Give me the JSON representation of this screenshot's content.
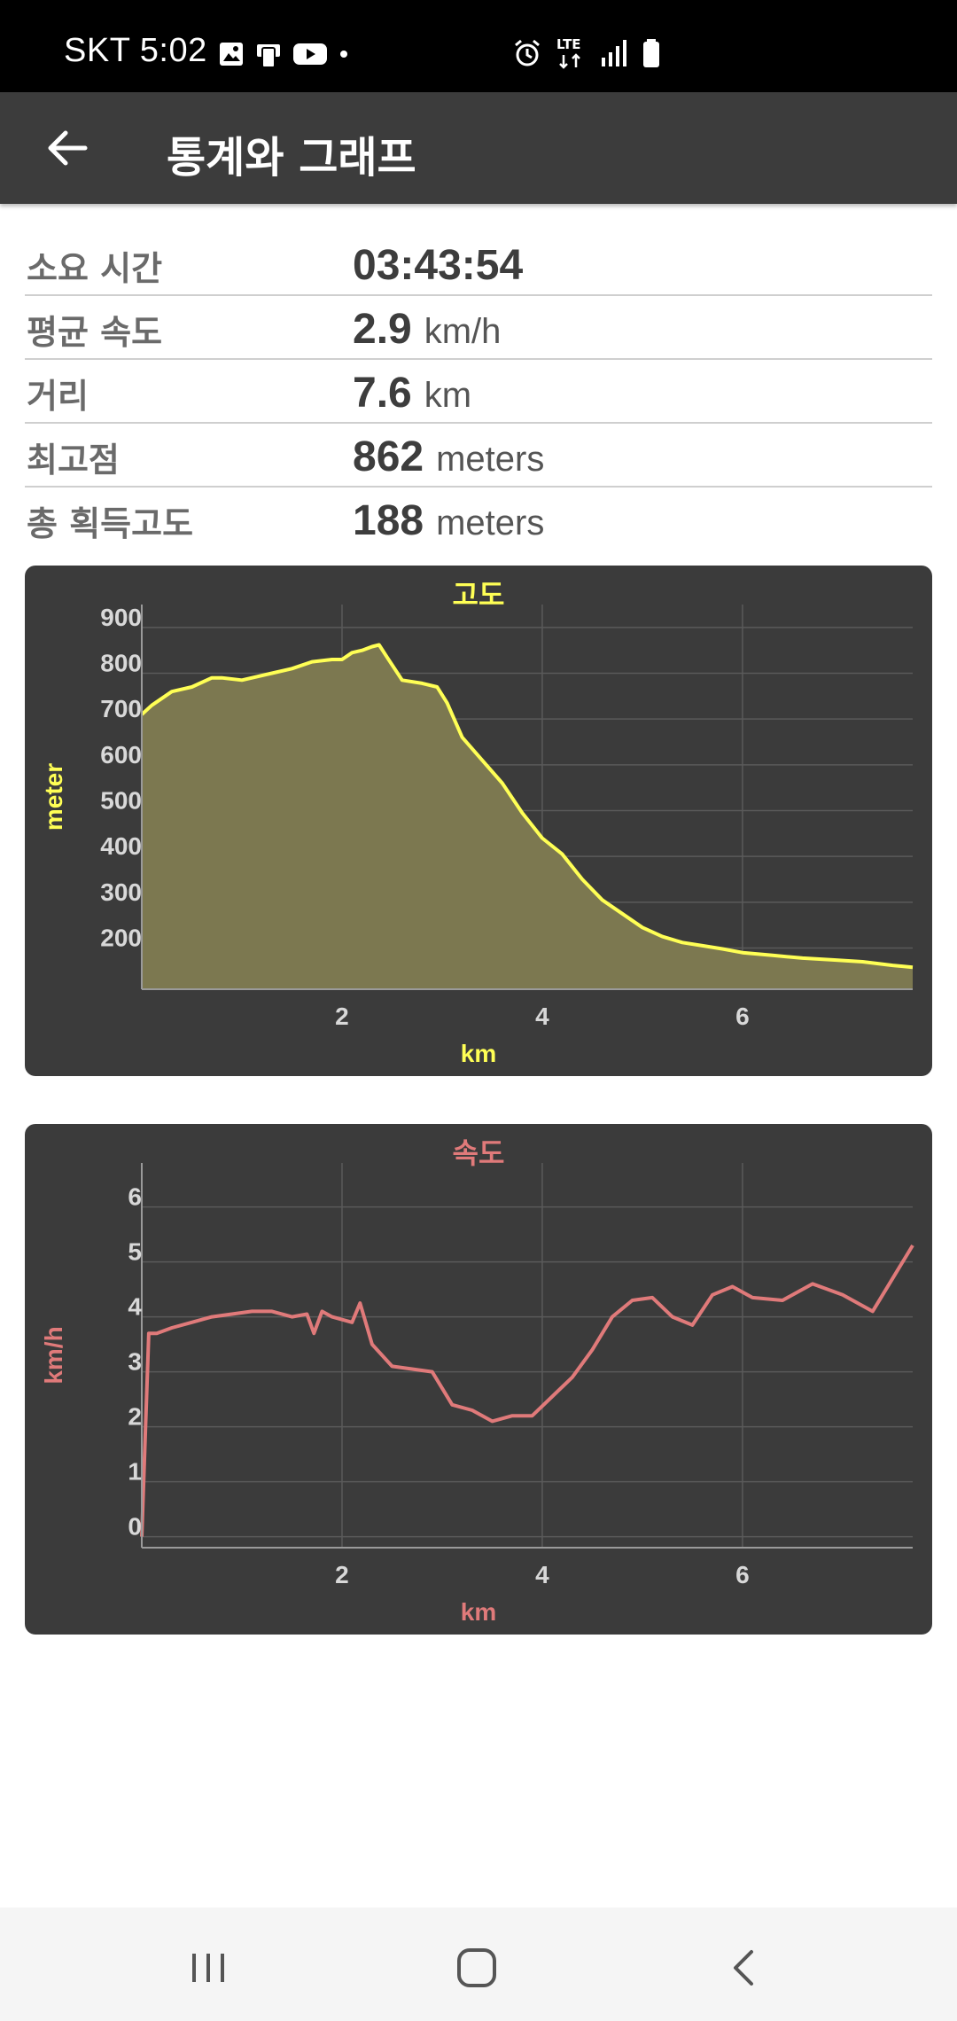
{
  "status_bar": {
    "carrier_time": "SKT 5:02",
    "network": "LTE",
    "icons_left": [
      "gallery-icon",
      "phone-status-icon",
      "youtube-icon",
      "dot-icon"
    ],
    "icons_right": [
      "alarm-icon",
      "lte-icon",
      "signal-icon",
      "battery-icon"
    ]
  },
  "app_bar": {
    "title": "통계와 그래프",
    "back_icon": "arrow-back-icon"
  },
  "stats": [
    {
      "label": "소요 시간",
      "value": "03:43:54",
      "unit": ""
    },
    {
      "label": "평균 속도",
      "value": "2.9",
      "unit": "km/h"
    },
    {
      "label": "거리",
      "value": "7.6",
      "unit": "km"
    },
    {
      "label": "최고점",
      "value": "862",
      "unit": "meters"
    },
    {
      "label": "총 획득고도",
      "value": "188",
      "unit": "meters"
    }
  ],
  "chart_data": [
    {
      "type": "area",
      "title": "고도",
      "xlabel": "km",
      "ylabel": "meter",
      "color": "#ffff55",
      "fill": "#7c7850",
      "xlim": [
        0,
        7.7
      ],
      "ylim": [
        110,
        950
      ],
      "xticks": [
        2,
        4,
        6
      ],
      "yticks": [
        200,
        300,
        400,
        500,
        600,
        700,
        800,
        900
      ],
      "grid": true,
      "x": [
        0,
        0.1,
        0.3,
        0.5,
        0.7,
        0.8,
        1.0,
        1.3,
        1.5,
        1.7,
        1.9,
        2.0,
        2.1,
        2.2,
        2.3,
        2.37,
        2.45,
        2.6,
        2.8,
        2.95,
        3.05,
        3.2,
        3.4,
        3.6,
        3.8,
        4.0,
        4.2,
        4.4,
        4.6,
        4.8,
        5.0,
        5.2,
        5.4,
        5.6,
        5.8,
        6.0,
        6.3,
        6.6,
        6.9,
        7.2,
        7.5,
        7.7
      ],
      "y": [
        710,
        730,
        760,
        770,
        790,
        790,
        785,
        800,
        810,
        825,
        830,
        830,
        845,
        850,
        858,
        862,
        835,
        785,
        778,
        770,
        735,
        660,
        610,
        560,
        495,
        440,
        405,
        350,
        305,
        275,
        245,
        225,
        212,
        205,
        198,
        190,
        184,
        178,
        174,
        170,
        162,
        158
      ]
    },
    {
      "type": "line",
      "title": "속도",
      "xlabel": "km",
      "ylabel": "km/h",
      "color": "#e07a7a",
      "xlim": [
        0,
        7.7
      ],
      "ylim": [
        -0.2,
        6.8
      ],
      "xticks": [
        2,
        4,
        6
      ],
      "yticks": [
        0,
        1,
        2,
        3,
        4,
        5,
        6
      ],
      "grid": true,
      "x": [
        0,
        0.07,
        0.15,
        0.3,
        0.5,
        0.7,
        0.9,
        1.1,
        1.3,
        1.5,
        1.65,
        1.72,
        1.8,
        1.9,
        2.0,
        2.1,
        2.18,
        2.3,
        2.5,
        2.7,
        2.9,
        3.1,
        3.3,
        3.5,
        3.7,
        3.9,
        4.1,
        4.3,
        4.5,
        4.7,
        4.9,
        5.1,
        5.3,
        5.5,
        5.7,
        5.9,
        6.1,
        6.4,
        6.7,
        7.0,
        7.3,
        7.7
      ],
      "y": [
        0,
        3.7,
        3.7,
        3.8,
        3.9,
        4.0,
        4.05,
        4.1,
        4.1,
        4.0,
        4.05,
        3.7,
        4.1,
        4.0,
        3.95,
        3.9,
        4.25,
        3.5,
        3.1,
        3.05,
        3.0,
        2.4,
        2.3,
        2.1,
        2.2,
        2.2,
        2.55,
        2.9,
        3.4,
        4.0,
        4.3,
        4.35,
        4.0,
        3.85,
        4.4,
        4.55,
        4.35,
        4.3,
        4.6,
        4.4,
        4.1,
        5.3
      ]
    }
  ],
  "nav_bar": {
    "buttons": [
      "recent-apps-icon",
      "home-icon",
      "back-icon"
    ]
  }
}
